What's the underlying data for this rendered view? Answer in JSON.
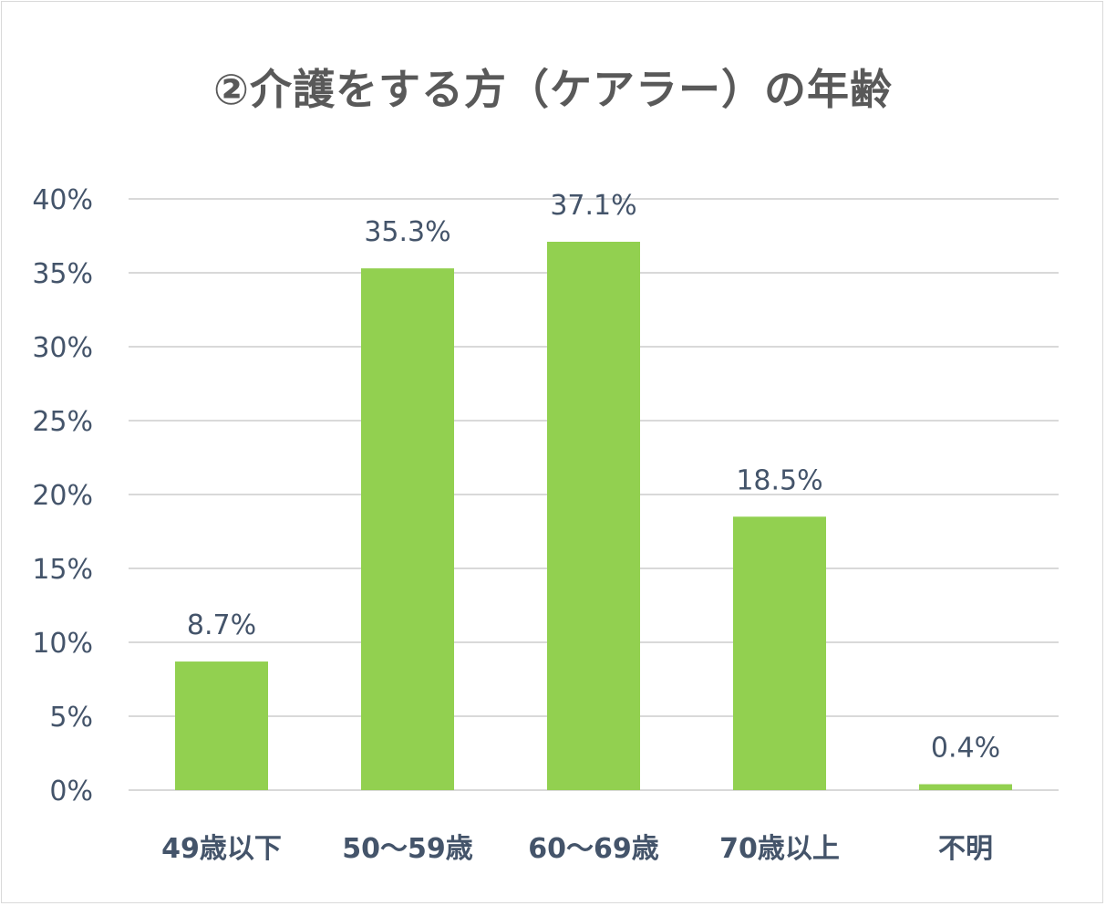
{
  "chart_data": {
    "type": "bar",
    "title": "②介護をする方（ケアラー）の年齢",
    "xlabel": "",
    "ylabel": "",
    "categories": [
      "49歳以下",
      "50～59歳",
      "60～69歳",
      "70歳以上",
      "不明"
    ],
    "values": [
      8.7,
      35.3,
      37.1,
      18.5,
      0.4
    ],
    "data_labels": [
      "8.7%",
      "35.3%",
      "37.1%",
      "18.5%",
      "0.4%"
    ],
    "ylim": [
      0,
      40
    ],
    "yticks": [
      0,
      5,
      10,
      15,
      20,
      25,
      30,
      35,
      40
    ],
    "ytick_labels": [
      "0%",
      "5%",
      "10%",
      "15%",
      "20%",
      "25%",
      "30%",
      "35%",
      "40%"
    ],
    "grid": true,
    "legend": "none",
    "colors": {
      "bar": "#92d050",
      "grid": "#d9d9d9",
      "text": "#44546a",
      "title": "#595959"
    }
  }
}
